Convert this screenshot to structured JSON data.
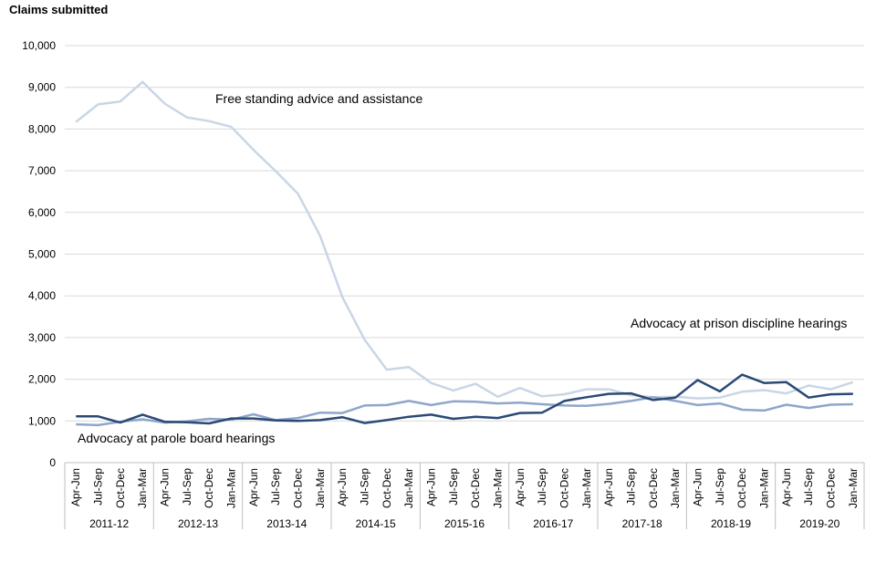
{
  "chart_data": {
    "type": "line",
    "ylabel": "Claims submitted",
    "ylim": [
      0,
      10000
    ],
    "yticks": [
      "0",
      "1,000",
      "2,000",
      "3,000",
      "4,000",
      "5,000",
      "6,000",
      "7,000",
      "8,000",
      "9,000",
      "10,000"
    ],
    "grid": "horizontal",
    "categories": [
      "Apr-Jun",
      "Jul-Sep",
      "Oct-Dec",
      "Jan-Mar",
      "Apr-Jun",
      "Jul-Sep",
      "Oct-Dec",
      "Jan-Mar",
      "Apr-Jun",
      "Jul-Sep",
      "Oct-Dec",
      "Jan-Mar",
      "Apr-Jun",
      "Jul-Sep",
      "Oct-Dec",
      "Jan-Mar",
      "Apr-Jun",
      "Jul-Sep",
      "Oct-Dec",
      "Jan-Mar",
      "Apr-Jun",
      "Jul-Sep",
      "Oct-Dec",
      "Jan-Mar",
      "Apr-Jun",
      "Jul-Sep",
      "Oct-Dec",
      "Jan-Mar",
      "Apr-Jun",
      "Jul-Sep",
      "Oct-Dec",
      "Jan-Mar",
      "Apr-Jun",
      "Jul-Sep",
      "Oct-Dec",
      "Jan-Mar"
    ],
    "groups": [
      "2011-12",
      "2012-13",
      "2013-14",
      "2014-15",
      "2015-16",
      "2016-17",
      "2017-18",
      "2018-19",
      "2019-20"
    ],
    "series": [
      {
        "name": "Free standing advice and assistance",
        "color": "#c9d6e6",
        "values": [
          8170,
          8590,
          8660,
          9130,
          8610,
          8280,
          8190,
          8050,
          7500,
          6990,
          6450,
          5440,
          3970,
          2950,
          2230,
          2290,
          1910,
          1730,
          1890,
          1580,
          1790,
          1590,
          1640,
          1760,
          1760,
          1620,
          1570,
          1580,
          1540,
          1560,
          1700,
          1740,
          1660,
          1850,
          1760,
          1930
        ]
      },
      {
        "name": "Advocacy at prison discipline hearings",
        "color": "#8ea6ca",
        "values": [
          920,
          900,
          980,
          1040,
          960,
          990,
          1050,
          1030,
          1160,
          1020,
          1070,
          1200,
          1190,
          1370,
          1380,
          1480,
          1380,
          1470,
          1460,
          1420,
          1440,
          1400,
          1370,
          1360,
          1410,
          1480,
          1570,
          1480,
          1380,
          1420,
          1270,
          1250,
          1390,
          1310,
          1390,
          1400
        ]
      },
      {
        "name": "Advocacy at parole board hearings",
        "color": "#2a4a75",
        "values": [
          1110,
          1110,
          960,
          1150,
          980,
          970,
          940,
          1060,
          1060,
          1010,
          1000,
          1020,
          1090,
          950,
          1020,
          1100,
          1150,
          1050,
          1100,
          1070,
          1190,
          1200,
          1480,
          1570,
          1650,
          1660,
          1500,
          1560,
          1980,
          1710,
          2110,
          1910,
          1930,
          1560,
          1640,
          1650
        ]
      }
    ],
    "annotations": [
      {
        "text": "Free standing advice and assistance"
      },
      {
        "text": "Advocacy at prison discipline hearings"
      },
      {
        "text": "Advocacy at parole board hearings"
      }
    ]
  }
}
